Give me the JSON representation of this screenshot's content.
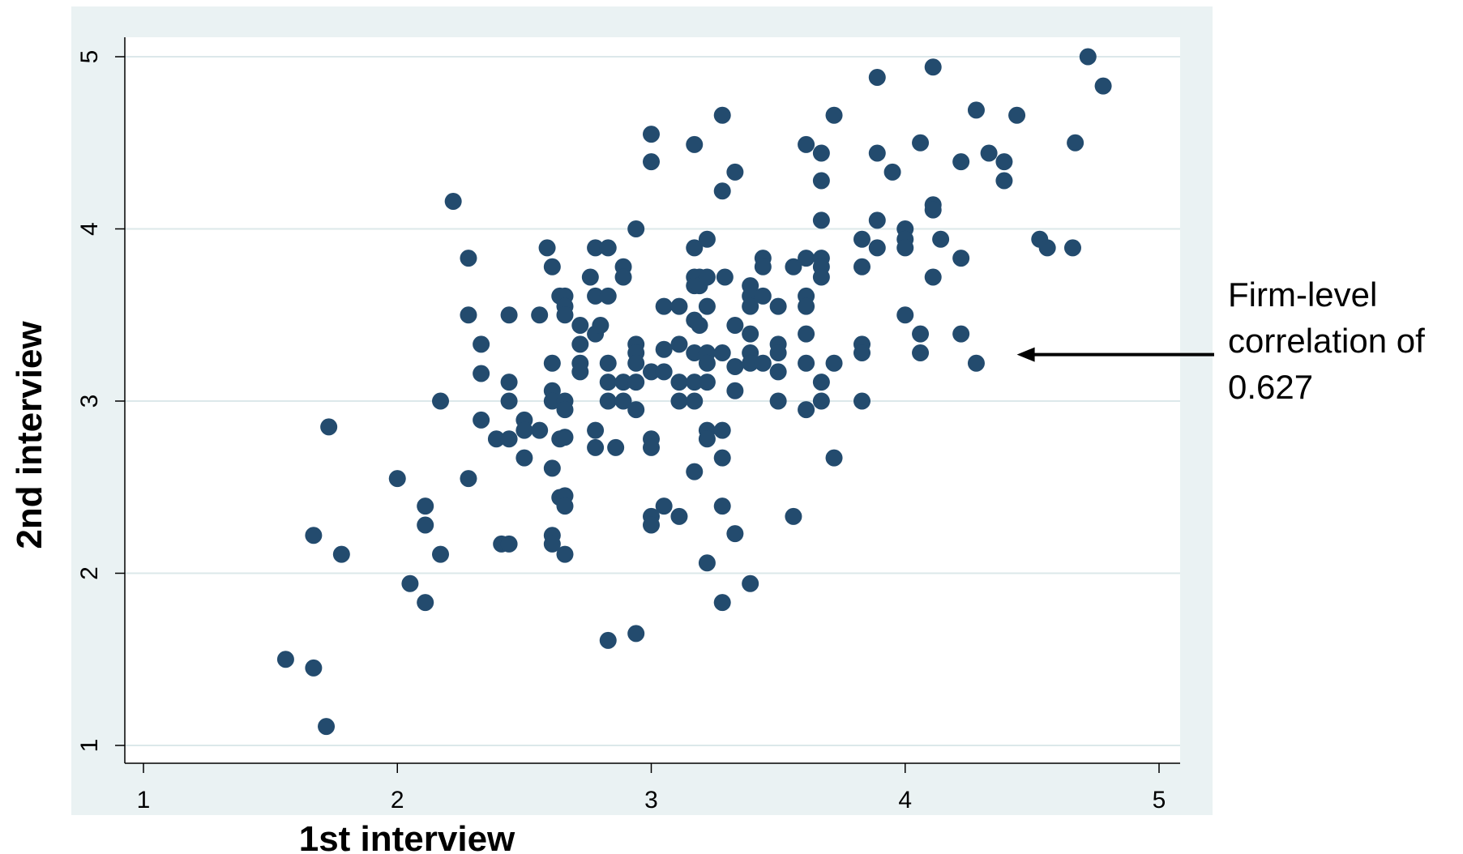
{
  "chart_data": {
    "type": "scatter",
    "title": "",
    "xlabel": "1st interview",
    "ylabel": "2nd interview",
    "xlim": [
      1,
      5
    ],
    "ylim": [
      1,
      5
    ],
    "xticks": [
      "1",
      "2",
      "3",
      "4",
      "5"
    ],
    "yticks": [
      "1",
      "2",
      "3",
      "4",
      "5"
    ],
    "grid": "horizontal",
    "colors": {
      "points": "#234b6e",
      "plot_region": "#eaf2f3",
      "plot_bg": "#ffffff",
      "grid": "#dce8ea"
    },
    "annotation": {
      "text": "Firm-level\ncorrelation of\n0.627",
      "arrow_target": [
        4.44,
        3.27
      ]
    },
    "points": [
      [
        1.56,
        1.5
      ],
      [
        1.67,
        1.45
      ],
      [
        1.72,
        1.11
      ],
      [
        1.67,
        2.22
      ],
      [
        1.78,
        2.11
      ],
      [
        1.73,
        2.85
      ],
      [
        2.0,
        2.55
      ],
      [
        2.05,
        1.94
      ],
      [
        2.11,
        1.83
      ],
      [
        2.11,
        2.28
      ],
      [
        2.11,
        2.39
      ],
      [
        2.17,
        2.11
      ],
      [
        2.17,
        3.0
      ],
      [
        2.22,
        4.16
      ],
      [
        2.28,
        3.83
      ],
      [
        2.28,
        3.5
      ],
      [
        2.28,
        2.55
      ],
      [
        2.33,
        3.33
      ],
      [
        2.33,
        3.16
      ],
      [
        2.33,
        2.89
      ],
      [
        2.39,
        2.78
      ],
      [
        2.41,
        2.17
      ],
      [
        2.44,
        2.17
      ],
      [
        2.44,
        3.5
      ],
      [
        2.44,
        3.11
      ],
      [
        2.44,
        3.0
      ],
      [
        2.44,
        2.78
      ],
      [
        2.5,
        2.89
      ],
      [
        2.5,
        2.83
      ],
      [
        2.5,
        2.67
      ],
      [
        2.56,
        2.83
      ],
      [
        2.56,
        3.5
      ],
      [
        2.59,
        3.89
      ],
      [
        2.61,
        3.78
      ],
      [
        2.61,
        3.22
      ],
      [
        2.61,
        3.06
      ],
      [
        2.61,
        3.0
      ],
      [
        2.61,
        2.61
      ],
      [
        2.61,
        2.22
      ],
      [
        2.61,
        2.17
      ],
      [
        2.64,
        3.61
      ],
      [
        2.66,
        3.61
      ],
      [
        2.66,
        3.55
      ],
      [
        2.66,
        3.5
      ],
      [
        2.66,
        3.0
      ],
      [
        2.66,
        2.95
      ],
      [
        2.64,
        2.78
      ],
      [
        2.66,
        2.79
      ],
      [
        2.64,
        2.44
      ],
      [
        2.66,
        2.45
      ],
      [
        2.66,
        2.39
      ],
      [
        2.66,
        2.11
      ],
      [
        2.72,
        3.44
      ],
      [
        2.72,
        3.33
      ],
      [
        2.72,
        3.22
      ],
      [
        2.72,
        3.17
      ],
      [
        2.76,
        3.72
      ],
      [
        2.78,
        3.89
      ],
      [
        2.78,
        3.61
      ],
      [
        2.78,
        3.39
      ],
      [
        2.78,
        2.83
      ],
      [
        2.78,
        2.73
      ],
      [
        2.8,
        3.44
      ],
      [
        2.83,
        3.89
      ],
      [
        2.83,
        3.61
      ],
      [
        2.83,
        3.22
      ],
      [
        2.83,
        3.11
      ],
      [
        2.83,
        3.0
      ],
      [
        2.83,
        1.61
      ],
      [
        2.86,
        2.73
      ],
      [
        2.89,
        3.78
      ],
      [
        2.89,
        3.72
      ],
      [
        2.89,
        3.11
      ],
      [
        2.89,
        3.0
      ],
      [
        2.94,
        4.0
      ],
      [
        2.94,
        3.33
      ],
      [
        2.94,
        3.28
      ],
      [
        2.94,
        3.22
      ],
      [
        2.94,
        3.11
      ],
      [
        2.94,
        2.95
      ],
      [
        2.94,
        1.65
      ],
      [
        3.0,
        4.55
      ],
      [
        3.0,
        4.39
      ],
      [
        3.0,
        3.17
      ],
      [
        3.0,
        2.78
      ],
      [
        3.0,
        2.73
      ],
      [
        3.0,
        2.33
      ],
      [
        3.0,
        2.28
      ],
      [
        3.05,
        3.55
      ],
      [
        3.05,
        3.3
      ],
      [
        3.05,
        3.17
      ],
      [
        3.05,
        2.39
      ],
      [
        3.11,
        3.55
      ],
      [
        3.11,
        3.33
      ],
      [
        3.11,
        3.11
      ],
      [
        3.11,
        3.0
      ],
      [
        3.11,
        2.33
      ],
      [
        3.17,
        4.49
      ],
      [
        3.17,
        3.89
      ],
      [
        3.17,
        3.72
      ],
      [
        3.17,
        3.67
      ],
      [
        3.17,
        3.47
      ],
      [
        3.17,
        3.28
      ],
      [
        3.17,
        3.11
      ],
      [
        3.17,
        3.0
      ],
      [
        3.17,
        2.59
      ],
      [
        3.19,
        3.72
      ],
      [
        3.19,
        3.67
      ],
      [
        3.19,
        3.44
      ],
      [
        3.22,
        3.94
      ],
      [
        3.22,
        3.72
      ],
      [
        3.22,
        3.55
      ],
      [
        3.22,
        3.28
      ],
      [
        3.22,
        3.22
      ],
      [
        3.22,
        3.11
      ],
      [
        3.22,
        2.83
      ],
      [
        3.22,
        2.78
      ],
      [
        3.22,
        2.06
      ],
      [
        3.28,
        4.66
      ],
      [
        3.28,
        4.22
      ],
      [
        3.28,
        3.28
      ],
      [
        3.28,
        2.83
      ],
      [
        3.28,
        2.67
      ],
      [
        3.28,
        2.39
      ],
      [
        3.28,
        1.83
      ],
      [
        3.29,
        3.72
      ],
      [
        3.33,
        4.33
      ],
      [
        3.33,
        3.44
      ],
      [
        3.33,
        3.2
      ],
      [
        3.33,
        3.06
      ],
      [
        3.33,
        2.23
      ],
      [
        3.39,
        3.67
      ],
      [
        3.39,
        3.61
      ],
      [
        3.39,
        3.55
      ],
      [
        3.39,
        3.39
      ],
      [
        3.39,
        3.28
      ],
      [
        3.39,
        3.22
      ],
      [
        3.39,
        1.94
      ],
      [
        3.44,
        3.83
      ],
      [
        3.44,
        3.78
      ],
      [
        3.44,
        3.61
      ],
      [
        3.44,
        3.22
      ],
      [
        3.5,
        3.55
      ],
      [
        3.5,
        3.33
      ],
      [
        3.5,
        3.28
      ],
      [
        3.5,
        3.17
      ],
      [
        3.5,
        3.0
      ],
      [
        3.56,
        3.78
      ],
      [
        3.56,
        2.33
      ],
      [
        3.61,
        4.49
      ],
      [
        3.61,
        3.83
      ],
      [
        3.61,
        3.61
      ],
      [
        3.61,
        3.55
      ],
      [
        3.61,
        3.39
      ],
      [
        3.61,
        3.22
      ],
      [
        3.61,
        2.95
      ],
      [
        3.67,
        4.44
      ],
      [
        3.67,
        4.28
      ],
      [
        3.67,
        4.05
      ],
      [
        3.67,
        3.83
      ],
      [
        3.67,
        3.78
      ],
      [
        3.67,
        3.72
      ],
      [
        3.67,
        3.11
      ],
      [
        3.67,
        3.0
      ],
      [
        3.72,
        4.66
      ],
      [
        3.72,
        3.22
      ],
      [
        3.72,
        2.67
      ],
      [
        3.83,
        3.94
      ],
      [
        3.83,
        3.78
      ],
      [
        3.83,
        3.33
      ],
      [
        3.83,
        3.28
      ],
      [
        3.83,
        3.0
      ],
      [
        3.89,
        4.88
      ],
      [
        3.89,
        4.44
      ],
      [
        3.89,
        4.05
      ],
      [
        3.89,
        3.89
      ],
      [
        3.95,
        4.33
      ],
      [
        4.0,
        4.0
      ],
      [
        4.0,
        3.94
      ],
      [
        4.0,
        3.89
      ],
      [
        4.0,
        3.5
      ],
      [
        4.06,
        4.5
      ],
      [
        4.06,
        3.39
      ],
      [
        4.06,
        3.28
      ],
      [
        4.11,
        4.94
      ],
      [
        4.11,
        4.14
      ],
      [
        4.11,
        4.11
      ],
      [
        4.11,
        3.72
      ],
      [
        4.14,
        3.94
      ],
      [
        4.22,
        4.39
      ],
      [
        4.22,
        3.83
      ],
      [
        4.22,
        3.39
      ],
      [
        4.28,
        4.69
      ],
      [
        4.28,
        3.22
      ],
      [
        4.33,
        4.44
      ],
      [
        4.39,
        4.39
      ],
      [
        4.39,
        4.28
      ],
      [
        4.44,
        4.66
      ],
      [
        4.53,
        3.94
      ],
      [
        4.56,
        3.89
      ],
      [
        4.67,
        4.5
      ],
      [
        4.66,
        3.89
      ],
      [
        4.72,
        5.0
      ],
      [
        4.78,
        4.83
      ]
    ]
  }
}
